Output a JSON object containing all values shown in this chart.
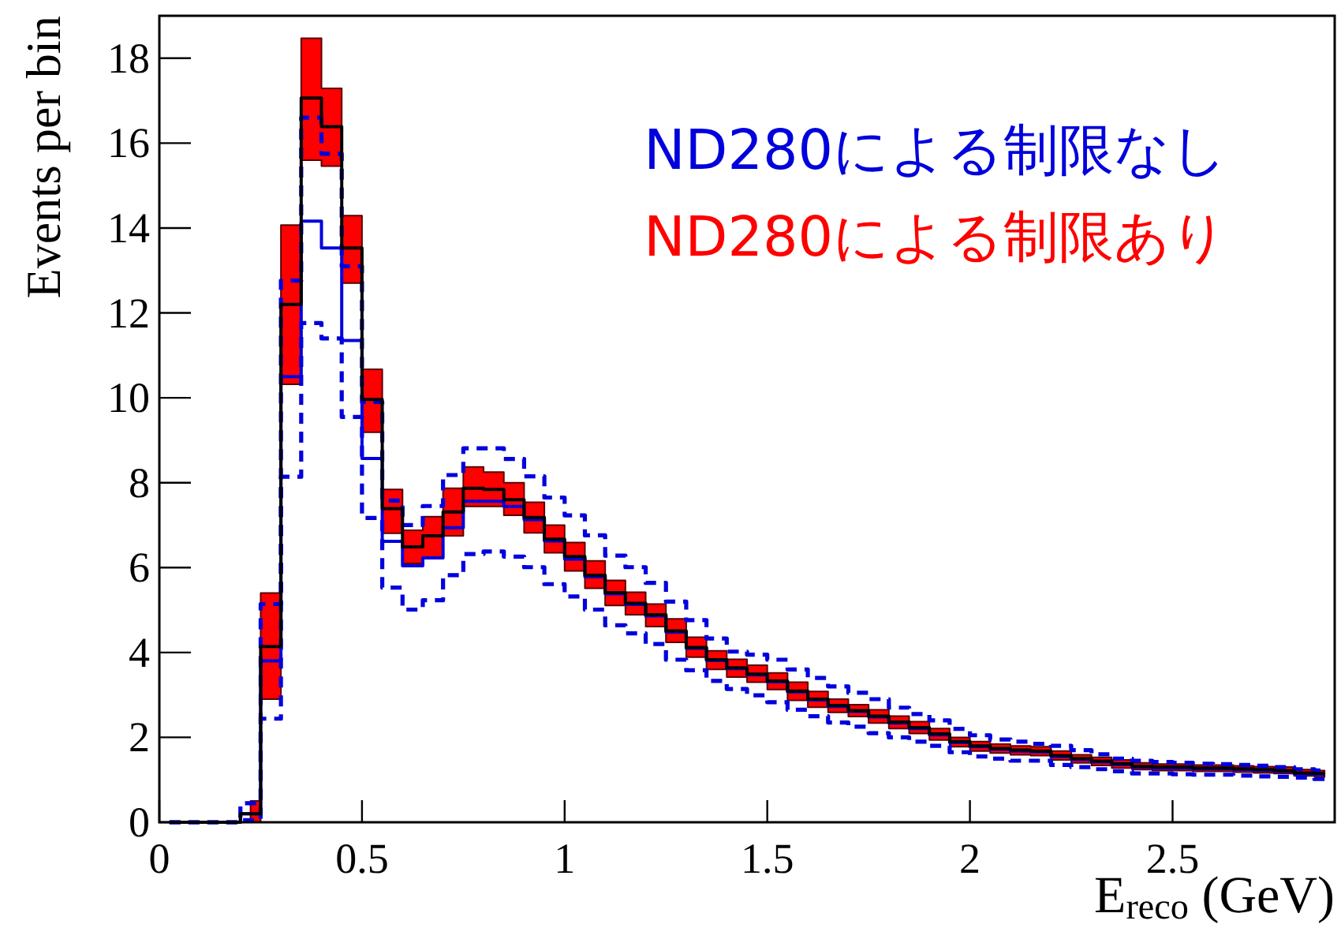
{
  "chart_data": {
    "type": "step",
    "xlabel": "E$_{reco}$ (GeV)",
    "ylabel": "Events per bin",
    "x": [
      0.025,
      0.075,
      0.125,
      0.175,
      0.225,
      0.275,
      0.325,
      0.375,
      0.425,
      0.475,
      0.525,
      0.575,
      0.625,
      0.675,
      0.725,
      0.775,
      0.825,
      0.875,
      0.925,
      0.975,
      1.025,
      1.075,
      1.125,
      1.175,
      1.225,
      1.275,
      1.325,
      1.375,
      1.425,
      1.475,
      1.525,
      1.575,
      1.625,
      1.675,
      1.725,
      1.775,
      1.825,
      1.875,
      1.925,
      1.975,
      2.025,
      2.075,
      2.125,
      2.175,
      2.225,
      2.275,
      2.325,
      2.375,
      2.425,
      2.475,
      2.525,
      2.575,
      2.625,
      2.675,
      2.725,
      2.775,
      2.825,
      2.875
    ],
    "xlim": [
      0,
      2.9
    ],
    "ylim": [
      0,
      19
    ],
    "xticks": [
      0,
      0.5,
      1,
      1.5,
      2,
      2.5
    ],
    "yticks": [
      0,
      2,
      4,
      6,
      8,
      10,
      12,
      14,
      16,
      18
    ],
    "series": [
      {
        "name": "ND280による制限あり",
        "color": "#ff0000",
        "values": [
          null,
          null,
          null,
          null,
          null,
          null,
          null,
          null,
          null,
          null,
          null,
          null,
          null,
          null,
          null,
          null,
          null,
          null,
          null,
          null,
          null,
          null,
          null,
          null,
          null,
          null,
          null,
          null,
          null,
          null,
          null,
          null,
          null,
          null,
          null,
          null,
          null,
          null,
          null,
          null,
          null,
          null,
          null,
          null,
          null,
          null,
          null,
          null,
          null,
          null,
          null,
          null,
          null,
          null,
          null,
          null,
          null,
          null
        ],
        "lower": [
          null,
          null,
          null,
          null,
          0,
          2.9,
          10.32,
          15.6,
          15.46,
          12.7,
          9.19,
          6.81,
          6.1,
          6.23,
          6.75,
          7.44,
          7.44,
          7.23,
          6.82,
          6.35,
          5.92,
          5.51,
          5.11,
          4.89,
          4.61,
          4.24,
          3.89,
          3.6,
          3.42,
          3.3,
          3.13,
          2.87,
          2.71,
          2.59,
          2.49,
          2.34,
          2.21,
          2.09,
          1.94,
          1.78,
          1.68,
          1.63,
          1.59,
          1.57,
          1.47,
          1.4,
          1.34,
          1.28,
          1.24,
          1.22,
          1.22,
          1.2,
          1.2,
          1.18,
          1.16,
          1.15,
          1.09,
          1.07
        ],
        "upper": [
          null,
          null,
          null,
          null,
          0.5,
          5.4,
          14.07,
          18.47,
          17.29,
          14.29,
          10.67,
          7.84,
          6.88,
          7.2,
          7.87,
          8.37,
          8.25,
          8.0,
          7.54,
          7.0,
          6.59,
          6.16,
          5.7,
          5.42,
          5.14,
          4.79,
          4.36,
          4.04,
          3.84,
          3.7,
          3.52,
          3.3,
          3.08,
          2.9,
          2.77,
          2.65,
          2.5,
          2.37,
          2.21,
          2.0,
          1.9,
          1.84,
          1.8,
          1.78,
          1.68,
          1.59,
          1.53,
          1.47,
          1.4,
          1.37,
          1.37,
          1.35,
          1.35,
          1.33,
          1.31,
          1.3,
          1.24,
          1.22
        ]
      },
      {
        "type": "step",
        "color": "#0000dd",
        "line_style": "dashed",
        "values": [
          0,
          0,
          0,
          0,
          0.45,
          5.14,
          12.76,
          16.6,
          15.75,
          13.1,
          9.9,
          7.58,
          7.0,
          7.45,
          8.18,
          8.81,
          8.81,
          8.56,
          8.15,
          7.65,
          7.23,
          6.76,
          6.28,
          6.01,
          5.64,
          5.2,
          4.76,
          4.33,
          4.02,
          3.95,
          3.83,
          3.6,
          3.4,
          3.2,
          3.05,
          2.9,
          2.7,
          2.55,
          2.4,
          2.2,
          2.05,
          1.95,
          1.9,
          1.85,
          1.8,
          1.7,
          1.6,
          1.5,
          1.45,
          1.42,
          1.4,
          1.38,
          1.37,
          1.35,
          1.33,
          1.3,
          1.25,
          1.22
        ]
      },
      {
        "type": "step",
        "color": "#0000dd",
        "line_style": "dashed",
        "values": [
          0,
          0,
          0,
          0,
          0.05,
          2.44,
          8.14,
          11.76,
          11.4,
          9.55,
          7.17,
          5.53,
          5.01,
          5.23,
          5.82,
          6.32,
          6.38,
          6.26,
          6.01,
          5.61,
          5.32,
          5.01,
          4.64,
          4.45,
          4.2,
          3.83,
          3.58,
          3.33,
          3.14,
          2.99,
          2.83,
          2.65,
          2.5,
          2.35,
          2.25,
          2.1,
          2.0,
          1.9,
          1.8,
          1.65,
          1.55,
          1.5,
          1.45,
          1.45,
          1.35,
          1.3,
          1.25,
          1.2,
          1.15,
          1.15,
          1.13,
          1.12,
          1.12,
          1.1,
          1.08,
          1.07,
          1.05,
          1.02
        ]
      },
      {
        "type": "step",
        "name": "ND280による制限なし",
        "color": "#0000dd",
        "values": [
          0,
          0,
          0,
          0,
          0.2,
          3.8,
          10.5,
          14.16,
          13.53,
          11.35,
          8.57,
          6.62,
          6.04,
          6.23,
          6.94,
          7.56,
          7.56,
          7.44,
          7.13,
          6.63,
          6.2,
          5.78,
          5.38,
          5.13,
          4.86,
          4.48,
          4.1,
          3.81,
          3.62,
          3.47,
          3.31,
          3.07,
          2.88,
          2.73,
          2.61,
          2.48,
          2.34,
          2.21,
          2.06,
          1.88,
          1.78,
          1.72,
          1.68,
          1.66,
          1.55,
          1.48,
          1.42,
          1.36,
          1.3,
          1.28,
          1.28,
          1.26,
          1.26,
          1.24,
          1.22,
          1.2,
          1.14,
          1.13
        ]
      },
      {
        "type": "step",
        "color": "#000000",
        "values": [
          0,
          0,
          0,
          0,
          0.2,
          4.14,
          12.2,
          17.06,
          16.39,
          13.53,
          9.96,
          7.39,
          6.49,
          6.75,
          7.31,
          7.87,
          7.84,
          7.6,
          7.18,
          6.67,
          6.26,
          5.82,
          5.41,
          5.16,
          4.89,
          4.51,
          4.12,
          3.83,
          3.64,
          3.49,
          3.33,
          3.09,
          2.9,
          2.75,
          2.63,
          2.5,
          2.36,
          2.23,
          2.08,
          1.9,
          1.8,
          1.74,
          1.7,
          1.68,
          1.57,
          1.5,
          1.44,
          1.38,
          1.32,
          1.3,
          1.3,
          1.28,
          1.28,
          1.26,
          1.24,
          1.22,
          1.16,
          1.15
        ]
      }
    ]
  }
}
